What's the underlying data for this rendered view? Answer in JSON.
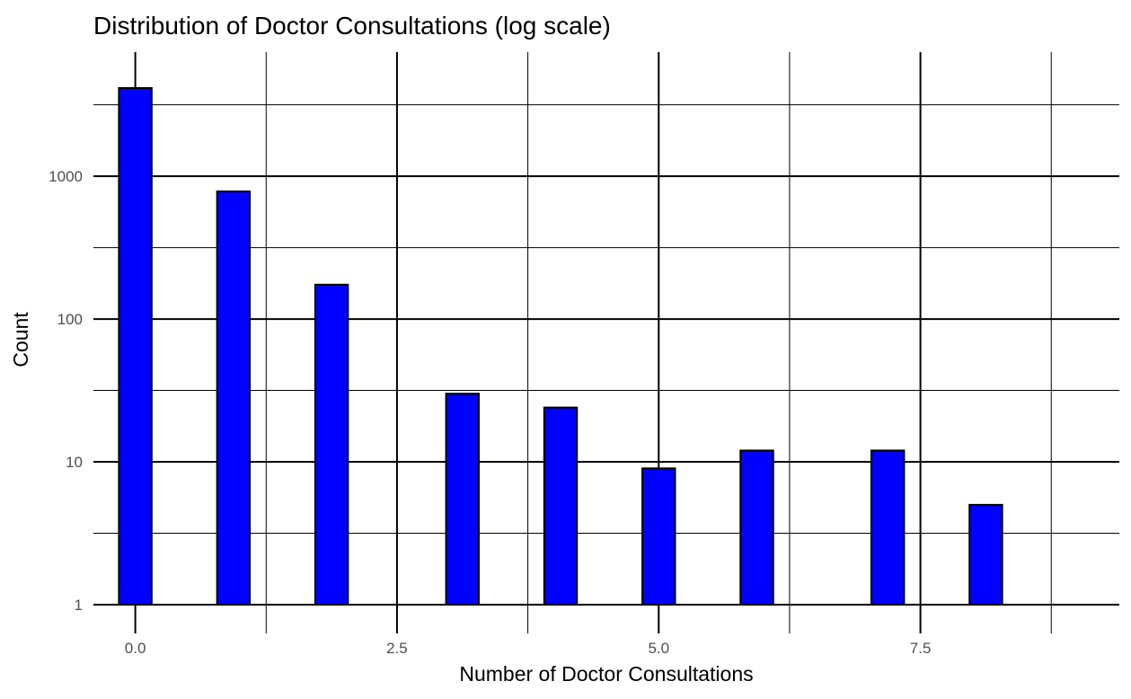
{
  "chart_data": {
    "type": "bar",
    "title": "Distribution of Doctor Consultations (log scale)",
    "xlabel": "Number of Doctor Consultations",
    "ylabel": "Count",
    "x_scale": "linear",
    "y_scale": "log10",
    "xlim": [
      -0.4,
      9.4
    ],
    "ylim": [
      1,
      5000
    ],
    "x_major_ticks": [
      0.0,
      2.5,
      5.0,
      7.5
    ],
    "x_tick_labels": [
      "0.0",
      "2.5",
      "5.0",
      "7.5"
    ],
    "x_minor_ticks": [
      1.25,
      3.75,
      6.25,
      8.75
    ],
    "y_major_ticks": [
      1,
      10,
      100,
      1000
    ],
    "y_tick_labels": [
      "1",
      "10",
      "100",
      "1000"
    ],
    "y_minor_ticks": [
      3.162,
      31.62,
      316.2,
      3162
    ],
    "bin_width": 0.3125,
    "bins": [
      {
        "x": 0.0,
        "count": 4141
      },
      {
        "x": 0.9375,
        "count": 782
      },
      {
        "x": 1.875,
        "count": 174
      },
      {
        "x": 3.125,
        "count": 30
      },
      {
        "x": 4.0625,
        "count": 24
      },
      {
        "x": 5.0,
        "count": 9
      },
      {
        "x": 5.9375,
        "count": 12
      },
      {
        "x": 7.1875,
        "count": 12
      },
      {
        "x": 8.125,
        "count": 5
      },
      {
        "x": 9.0625,
        "count": 1
      }
    ],
    "bar_fill": "#0000ff",
    "bar_outline": "#000000",
    "grid": true,
    "legend": "none"
  }
}
